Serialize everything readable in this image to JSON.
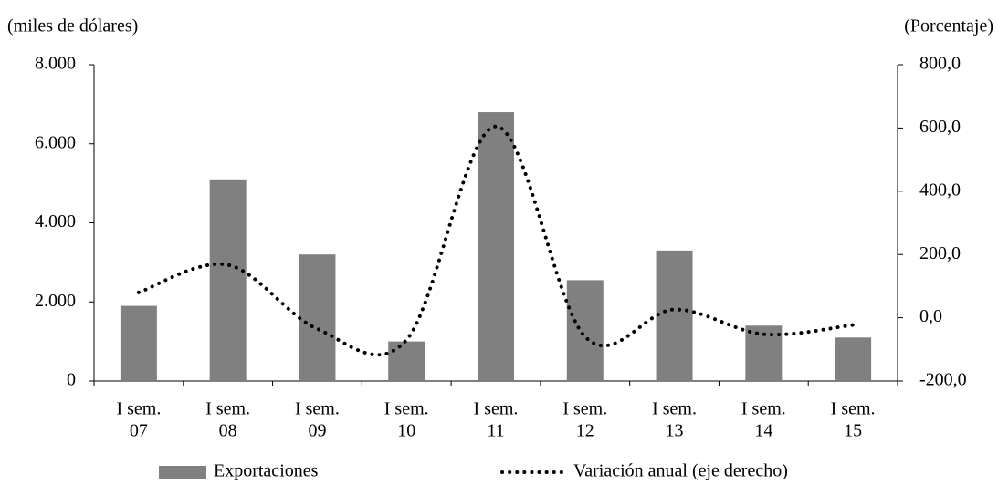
{
  "chart_data": {
    "type": "bar_line",
    "y_label": "(miles de dólares)",
    "y2_label": "(Porcentaje)",
    "categories": [
      [
        "I sem.",
        "07"
      ],
      [
        "I sem.",
        "08"
      ],
      [
        "I sem.",
        "09"
      ],
      [
        "I sem.",
        "10"
      ],
      [
        "I sem.",
        "11"
      ],
      [
        "I sem.",
        "12"
      ],
      [
        "I sem.",
        "13"
      ],
      [
        "I sem.",
        "14"
      ],
      [
        "I sem.",
        "15"
      ]
    ],
    "series": [
      {
        "name": "Exportaciones",
        "color": "#808080",
        "type": "bar",
        "values": [
          1900,
          5100,
          3200,
          1000,
          6800,
          2550,
          3300,
          1400,
          1100
        ]
      },
      {
        "name": "Variación anual (eje derecho)",
        "color": "#000000",
        "type": "line",
        "axis": "y2",
        "values": [
          80,
          167,
          -35,
          -70,
          605,
          -60,
          26,
          -52,
          -23
        ]
      }
    ],
    "ylim": [
      0,
      8000
    ],
    "yticks": [
      0,
      {
        "value": 2000,
        "label": "2.000"
      },
      {
        "value": 4000,
        "label": "4.000"
      },
      {
        "value": 6000,
        "label": "6.000"
      },
      {
        "value": 8000,
        "label": "8.000"
      }
    ],
    "y2lim": [
      -200,
      800
    ],
    "y2ticks": [
      {
        "value": -200,
        "label": "-200,0"
      },
      {
        "value": 0,
        "label": "0,0"
      },
      {
        "value": 200,
        "label": "200,0"
      },
      {
        "value": 400,
        "label": "400,0"
      },
      {
        "value": 600,
        "label": "600,0"
      },
      {
        "value": 800,
        "label": "800,0"
      }
    ],
    "grid": false
  }
}
